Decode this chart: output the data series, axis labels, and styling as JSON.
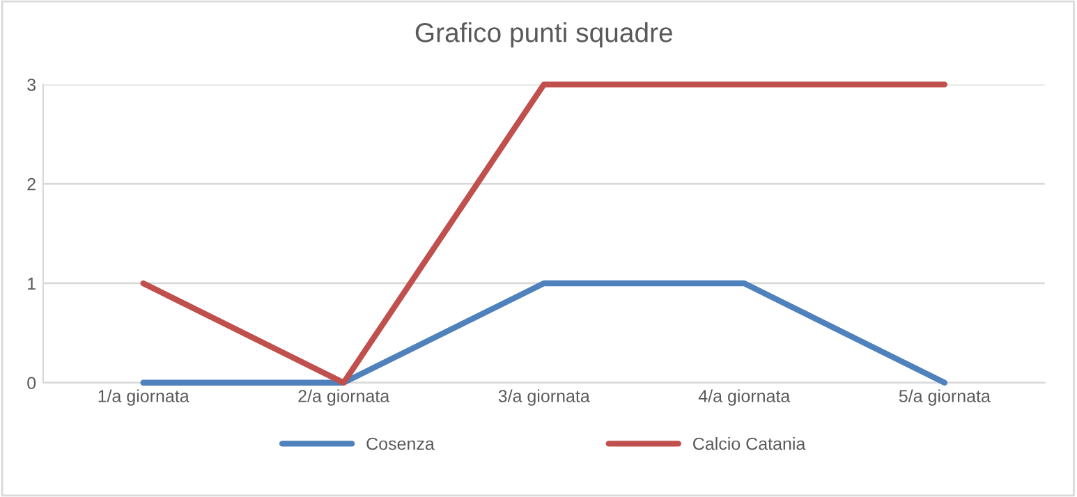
{
  "chart_data": {
    "type": "line",
    "title": "Grafico punti squadre",
    "categories": [
      "1/a giornata",
      "2/a giornata",
      "3/a giornata",
      "4/a giornata",
      "5/a giornata"
    ],
    "series": [
      {
        "name": "Cosenza",
        "color": "#4f81bd",
        "values": [
          0,
          0,
          1,
          1,
          0
        ]
      },
      {
        "name": "Calcio Catania",
        "color": "#c0504d",
        "values": [
          1,
          0,
          3,
          3,
          3
        ]
      }
    ],
    "ylim": [
      0,
      3
    ],
    "yticks": [
      0,
      1,
      2,
      3
    ],
    "grid": "y",
    "legend": "bottom",
    "marker": "none",
    "line_style": "solid"
  }
}
